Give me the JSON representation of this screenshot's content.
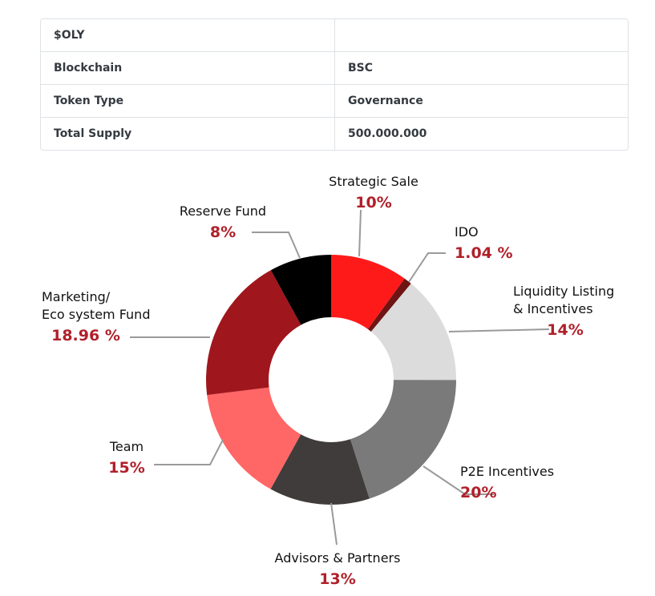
{
  "token_table": {
    "rows": [
      {
        "key": "$OLY",
        "value": ""
      },
      {
        "key": "Blockchain",
        "value": "BSC"
      },
      {
        "key": "Token Type",
        "value": "Governance"
      },
      {
        "key": "Total Supply",
        "value": "500.000.000"
      }
    ]
  },
  "chart_data": {
    "type": "pie",
    "title": "",
    "slices": [
      {
        "label_lines": [
          "Strategic Sale"
        ],
        "percent_text": "10%",
        "value": 10,
        "color": "#ff1a1a"
      },
      {
        "label_lines": [
          "IDO"
        ],
        "percent_text": "1.04 %",
        "value": 1.04,
        "color": "#6e1414"
      },
      {
        "label_lines": [
          "Liquidity Listing",
          "& Incentives"
        ],
        "percent_text": "14%",
        "value": 14,
        "color": "#dcdcdc"
      },
      {
        "label_lines": [
          "P2E Incentives"
        ],
        "percent_text": "20%",
        "value": 20,
        "color": "#7a7a7a"
      },
      {
        "label_lines": [
          "Advisors & Partners"
        ],
        "percent_text": "13%",
        "value": 13,
        "color": "#403c3b"
      },
      {
        "label_lines": [
          "Team"
        ],
        "percent_text": "15%",
        "value": 15,
        "color": "#ff6666"
      },
      {
        "label_lines": [
          "Marketing/",
          "Eco system Fund"
        ],
        "percent_text": "18.96 %",
        "value": 18.96,
        "color": "#a0161d"
      },
      {
        "label_lines": [
          "Reserve Fund"
        ],
        "percent_text": "8%",
        "value": 8,
        "color": "#000000"
      }
    ]
  }
}
